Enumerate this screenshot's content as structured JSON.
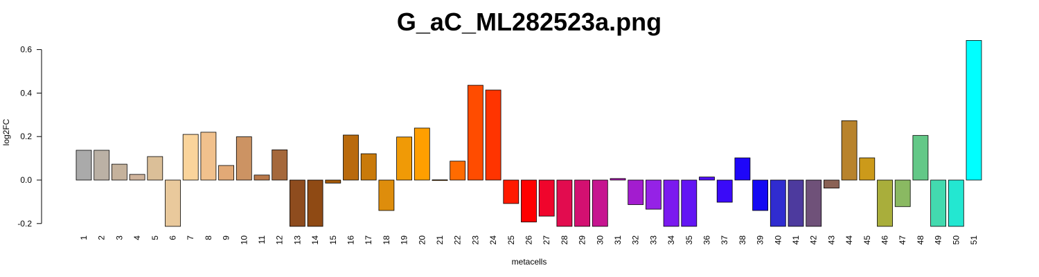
{
  "chart_data": {
    "type": "bar",
    "title": "G_aC_ML282523a.png",
    "xlabel": "metacells",
    "ylabel": "log2FC",
    "ylim": [
      -0.2,
      0.6
    ],
    "yticks": [
      "-0.2",
      "0.0",
      "0.2",
      "0.4",
      "0.6"
    ],
    "grid": false,
    "categories": [
      "1",
      "2",
      "3",
      "4",
      "5",
      "6",
      "7",
      "8",
      "9",
      "10",
      "11",
      "12",
      "13",
      "14",
      "15",
      "16",
      "17",
      "18",
      "19",
      "20",
      "21",
      "22",
      "23",
      "24",
      "25",
      "26",
      "27",
      "28",
      "29",
      "30",
      "31",
      "32",
      "33",
      "34",
      "35",
      "36",
      "37",
      "38",
      "39",
      "40",
      "41",
      "42",
      "43",
      "44",
      "45",
      "46",
      "47",
      "48",
      "49",
      "50",
      "51"
    ],
    "values": [
      0.137,
      0.137,
      0.073,
      0.026,
      0.108,
      -0.213,
      0.21,
      0.22,
      0.067,
      0.199,
      0.023,
      0.139,
      -0.213,
      -0.213,
      -0.014,
      0.207,
      0.121,
      -0.14,
      0.198,
      0.239,
      0.001,
      0.087,
      0.436,
      0.414,
      -0.108,
      -0.193,
      -0.166,
      -0.213,
      -0.213,
      -0.213,
      0.007,
      -0.113,
      -0.134,
      -0.213,
      -0.213,
      0.014,
      -0.102,
      0.102,
      -0.14,
      -0.213,
      -0.213,
      -0.213,
      -0.037,
      0.273,
      0.102,
      -0.213,
      -0.122,
      0.205,
      -0.213,
      -0.213,
      0.642
    ],
    "colors": [
      "#aaaaaa",
      "#bbb1a5",
      "#c5b29c",
      "#cfb39b",
      "#dbbf98",
      "#e9c99c",
      "#fad49b",
      "#f1c18d",
      "#e2a976",
      "#cc9363",
      "#b9794a",
      "#a5683b",
      "#8e4c1e",
      "#8f4a14",
      "#a3590a",
      "#b96a0d",
      "#c97a0a",
      "#de8d0c",
      "#f09a06",
      "#ff9f00",
      "#ff8c00",
      "#ff6b00",
      "#ff4c00",
      "#ff3400",
      "#ff1a00",
      "#ff0000",
      "#f0052c",
      "#e20c4f",
      "#d31071",
      "#c61590",
      "#b117b8",
      "#a31ccf",
      "#9522e6",
      "#7b1aef",
      "#6315f3",
      "#4f0ff6",
      "#3a0af8",
      "#1e06f9",
      "#1409f3",
      "#302cd0",
      "#4d3a9e",
      "#6f5179",
      "#8a6255",
      "#b8832c",
      "#cc9a1a",
      "#a9ae3b",
      "#8ab962",
      "#63c887",
      "#43daaf",
      "#23e7d1",
      "#00ffff"
    ]
  }
}
